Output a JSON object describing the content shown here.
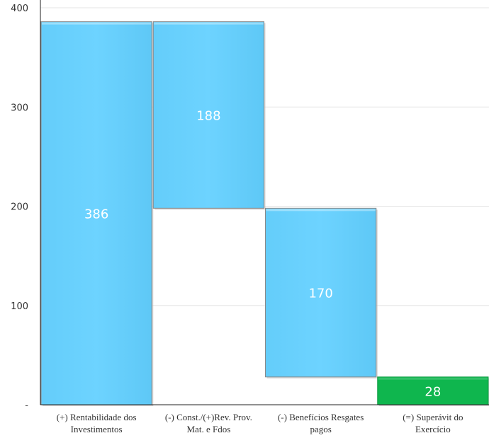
{
  "chart_data": {
    "type": "waterfall",
    "categories": [
      [
        "(+) Rentabilidade dos",
        "Investimentos"
      ],
      [
        "(-) Const./(+)Rev. Prov.",
        "Mat. e Fdos"
      ],
      [
        "(-) Benefícios Resgates",
        "pagos"
      ],
      [
        "(=) Superávit do",
        "Exercício"
      ]
    ],
    "values": [
      386,
      -188,
      -170,
      28
    ],
    "value_labels": [
      "386",
      "188",
      "170",
      "28"
    ],
    "bar_kinds": [
      "start",
      "decrease",
      "decrease",
      "total"
    ],
    "ylim": [
      0,
      400
    ],
    "yticks": [
      0,
      100,
      200,
      300,
      400
    ],
    "ytick_labels": [
      "-",
      "100",
      "200",
      "300",
      "400"
    ],
    "grid": true,
    "colors": {
      "bar": "#6dd3ff",
      "bar_edge": "#8a8a8a",
      "total": "#0fb64e"
    }
  }
}
